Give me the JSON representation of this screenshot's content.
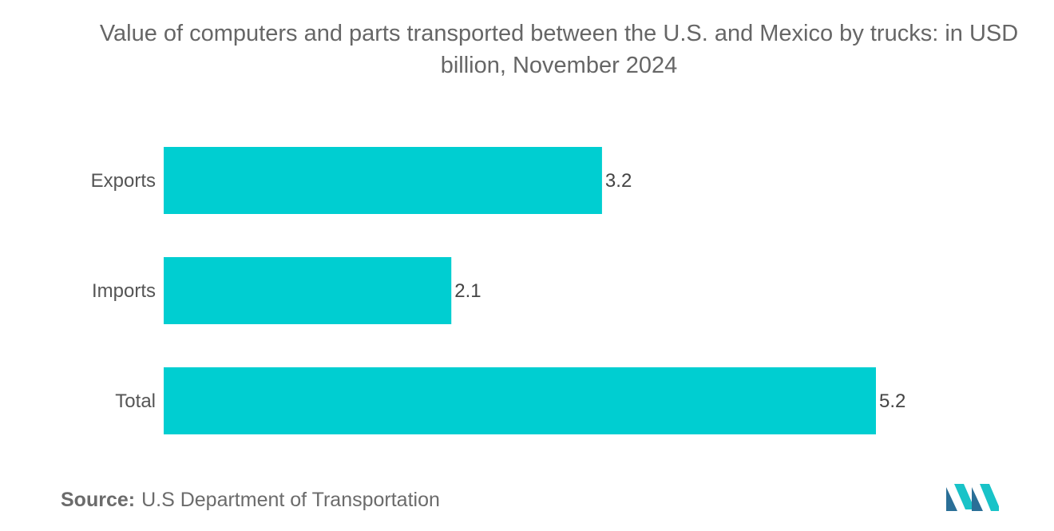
{
  "colors": {
    "bar": "#00ced1",
    "logo_dark": "#2a6f97",
    "logo_light": "#19c3c8"
  },
  "chart_data": {
    "type": "bar",
    "orientation": "horizontal",
    "title": "Value of computers and parts transported between the U.S. and Mexico by trucks: in USD billion, November 2024",
    "categories": [
      "Exports",
      "Imports",
      "Total"
    ],
    "values": [
      3.2,
      2.1,
      5.2
    ],
    "value_labels": [
      "3.2",
      "2.1",
      "5.2"
    ],
    "xlabel": "",
    "ylabel": "",
    "xlim": [
      0,
      5.2
    ],
    "grid": false,
    "legend": "none"
  },
  "footer": {
    "source_label": "Source:",
    "source_text": "U.S Department of Transportation"
  },
  "logo": {
    "icon": "mordor-intelligence-logo-icon"
  }
}
